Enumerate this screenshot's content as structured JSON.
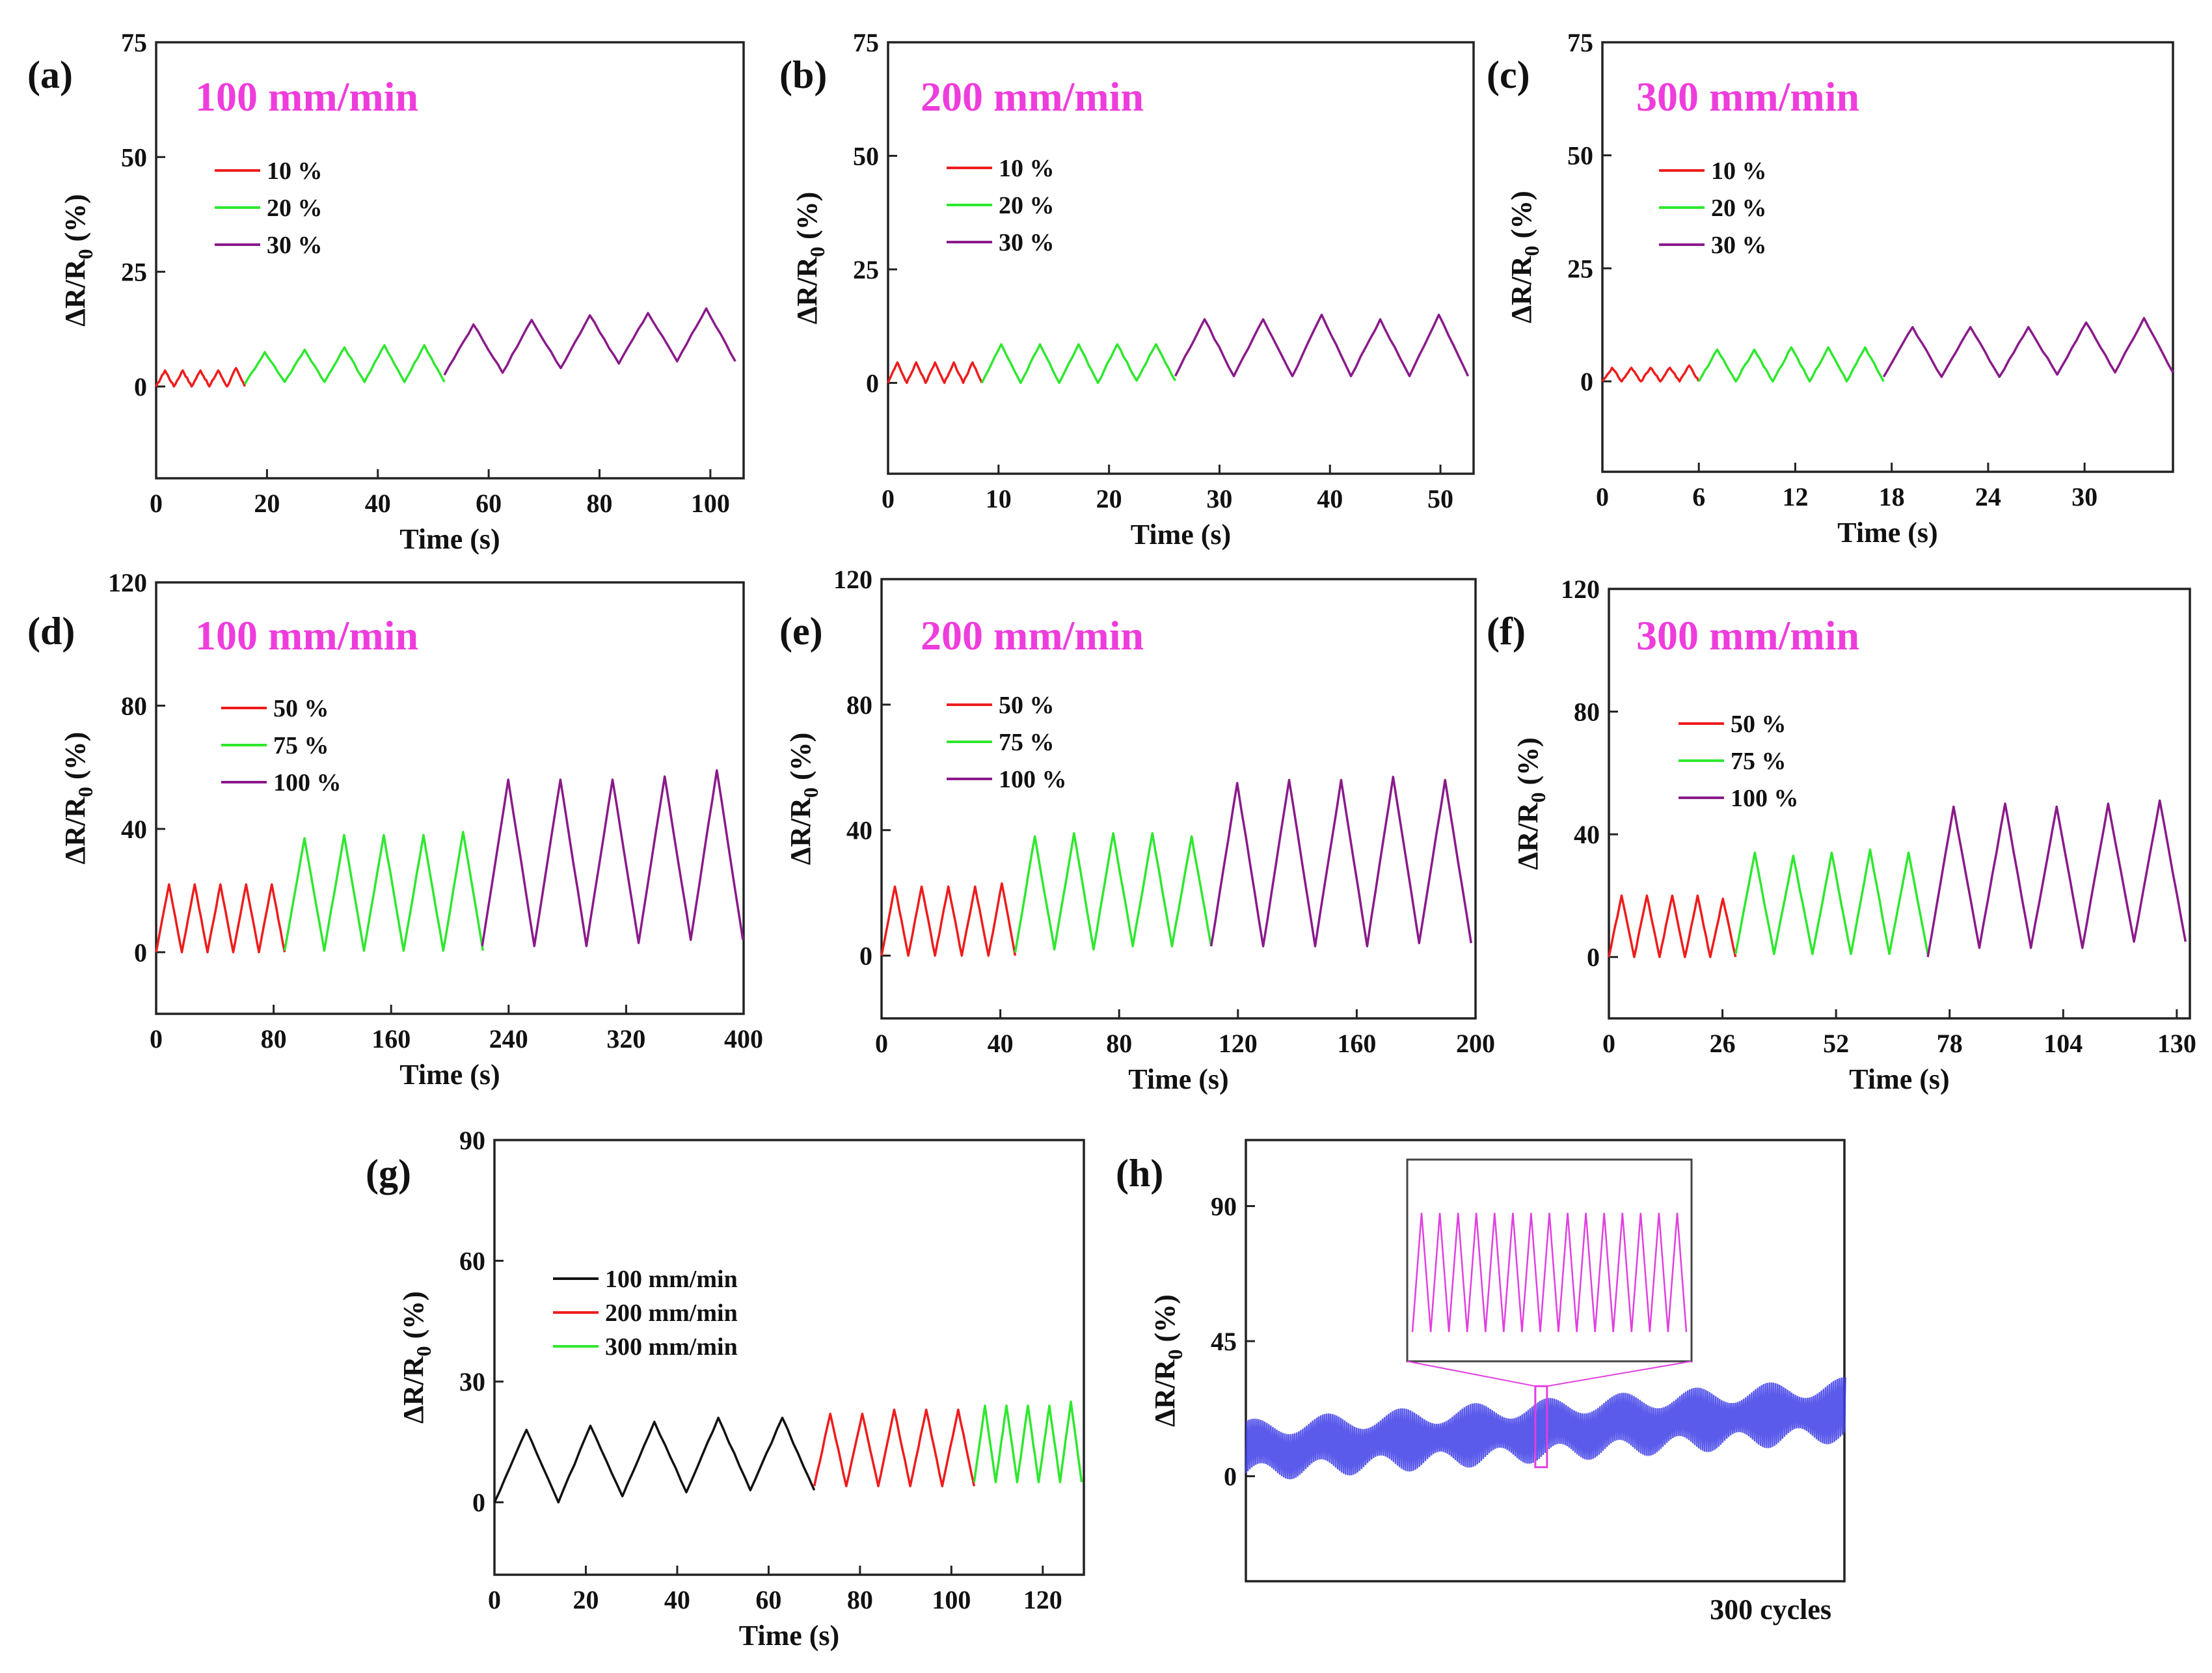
{
  "chart_data": [
    {
      "id": "a",
      "panel_label": "(a)",
      "speed_label": "100 mm/min",
      "type": "line",
      "xlabel": "Time (s)",
      "ylabel": "ΔR/R0 (%)",
      "xlim": [
        0,
        106
      ],
      "ylim": [
        -20,
        75
      ],
      "xticks": [
        0,
        20,
        40,
        60,
        80,
        100
      ],
      "yticks": [
        0,
        25,
        50,
        75
      ],
      "legend": [
        {
          "label": "10 %",
          "color": "#ee1c1c"
        },
        {
          "label": "20 %",
          "color": "#2ee82e"
        },
        {
          "label": "30 %",
          "color": "#8a1a8a"
        }
      ],
      "series": [
        {
          "name": "10 %",
          "color": "#ee1c1c",
          "start": 0,
          "period": 3.2,
          "cycles": 5,
          "min": [
            0,
            0,
            0,
            0,
            0
          ],
          "max": [
            3.5,
            3.5,
            3.5,
            3.5,
            4
          ]
        },
        {
          "name": "20 %",
          "color": "#2ee82e",
          "start": 16,
          "period": 7.2,
          "cycles": 5,
          "min": [
            0.5,
            1,
            1,
            1,
            1
          ],
          "max": [
            7.5,
            8,
            8.5,
            9,
            9
          ]
        },
        {
          "name": "30 %",
          "color": "#8a1a8a",
          "start": 52,
          "period": 10.5,
          "cycles": 5,
          "min": [
            2.5,
            3,
            4,
            5,
            5.5
          ],
          "max": [
            13.5,
            14.5,
            15.5,
            16,
            17
          ]
        }
      ]
    },
    {
      "id": "b",
      "panel_label": "(b)",
      "speed_label": "200 mm/min",
      "type": "line",
      "xlabel": "Time (s)",
      "ylabel": "ΔR/R0 (%)",
      "xlim": [
        0,
        53
      ],
      "ylim": [
        -20,
        75
      ],
      "xticks": [
        0,
        10,
        20,
        30,
        40,
        50
      ],
      "yticks": [
        0,
        25,
        50,
        75
      ],
      "legend": [
        {
          "label": "10 %",
          "color": "#ee1c1c"
        },
        {
          "label": "20 %",
          "color": "#2ee82e"
        },
        {
          "label": "30 %",
          "color": "#8a1a8a"
        }
      ],
      "series": [
        {
          "name": "10 %",
          "color": "#ee1c1c",
          "start": 0,
          "period": 1.7,
          "cycles": 5,
          "min": [
            0,
            0,
            0,
            0,
            0
          ],
          "max": [
            4.5,
            4.5,
            4.5,
            4.5,
            4.5
          ]
        },
        {
          "name": "20 %",
          "color": "#2ee82e",
          "start": 8.5,
          "period": 3.5,
          "cycles": 5,
          "min": [
            0,
            0,
            0,
            0,
            0.5
          ],
          "max": [
            8.5,
            8.5,
            8.5,
            8.5,
            8.5
          ]
        },
        {
          "name": "30 %",
          "color": "#8a1a8a",
          "start": 26,
          "period": 5.3,
          "cycles": 5,
          "min": [
            1.5,
            1.5,
            1.5,
            1.5,
            1.5
          ],
          "max": [
            14,
            14,
            15,
            14,
            15
          ]
        }
      ]
    },
    {
      "id": "c",
      "panel_label": "(c)",
      "speed_label": "300 mm/min",
      "type": "line",
      "xlabel": "Time (s)",
      "ylabel": "ΔR/R0 (%)",
      "xlim": [
        0,
        35.5
      ],
      "ylim": [
        -20,
        75
      ],
      "xticks": [
        0,
        6,
        12,
        18,
        24,
        30
      ],
      "yticks": [
        0,
        25,
        50,
        75
      ],
      "legend": [
        {
          "label": "10 %",
          "color": "#ee1c1c"
        },
        {
          "label": "20 %",
          "color": "#2ee82e"
        },
        {
          "label": "30 %",
          "color": "#8a1a8a"
        }
      ],
      "series": [
        {
          "name": "10 %",
          "color": "#ee1c1c",
          "start": 0,
          "period": 1.2,
          "cycles": 5,
          "min": [
            0,
            0,
            0,
            0,
            0
          ],
          "max": [
            3,
            3,
            3,
            3,
            3.5
          ]
        },
        {
          "name": "20 %",
          "color": "#2ee82e",
          "start": 6,
          "period": 2.3,
          "cycles": 5,
          "min": [
            0,
            0,
            0,
            0,
            0
          ],
          "max": [
            7,
            7,
            7.5,
            7.5,
            7.5
          ]
        },
        {
          "name": "30 %",
          "color": "#8a1a8a",
          "start": 17.5,
          "period": 3.6,
          "cycles": 5,
          "min": [
            1,
            1,
            1,
            1.5,
            2
          ],
          "max": [
            12,
            12,
            12,
            13,
            14
          ]
        }
      ]
    },
    {
      "id": "d",
      "panel_label": "(d)",
      "speed_label": "100 mm/min",
      "type": "line",
      "xlabel": "Time (s)",
      "ylabel": "ΔR/R0 (%)",
      "xlim": [
        0,
        400
      ],
      "ylim": [
        -20,
        120
      ],
      "xticks": [
        0,
        80,
        160,
        240,
        320,
        400
      ],
      "yticks": [
        0,
        40,
        80,
        120
      ],
      "legend": [
        {
          "label": "50 %",
          "color": "#ee1c1c"
        },
        {
          "label": "75 %",
          "color": "#2ee82e"
        },
        {
          "label": "100 %",
          "color": "#8a1a8a"
        }
      ],
      "series": [
        {
          "name": "50 %",
          "color": "#ee1c1c",
          "start": 0,
          "period": 17.5,
          "cycles": 5,
          "min": [
            0,
            0,
            0,
            0,
            0
          ],
          "max": [
            22,
            22,
            22,
            22,
            22
          ]
        },
        {
          "name": "75 %",
          "color": "#2ee82e",
          "start": 87.5,
          "period": 27,
          "cycles": 5,
          "min": [
            0.5,
            0.5,
            0.5,
            0.5,
            0.5
          ],
          "max": [
            37,
            38,
            38,
            38,
            39
          ]
        },
        {
          "name": "100 %",
          "color": "#8a1a8a",
          "start": 222,
          "period": 35.5,
          "cycles": 5,
          "min": [
            2,
            2,
            2,
            3,
            4
          ],
          "max": [
            56,
            56,
            56,
            57,
            59
          ]
        }
      ]
    },
    {
      "id": "e",
      "panel_label": "(e)",
      "speed_label": "200 mm/min",
      "type": "line",
      "xlabel": "Time (s)",
      "ylabel": "ΔR/R0 (%)",
      "xlim": [
        0,
        200
      ],
      "ylim": [
        -20,
        120
      ],
      "xticks": [
        0,
        40,
        80,
        120,
        160,
        200
      ],
      "yticks": [
        0,
        40,
        80,
        120
      ],
      "legend": [
        {
          "label": "50 %",
          "color": "#ee1c1c"
        },
        {
          "label": "75 %",
          "color": "#2ee82e"
        },
        {
          "label": "100 %",
          "color": "#8a1a8a"
        }
      ],
      "series": [
        {
          "name": "50 %",
          "color": "#ee1c1c",
          "start": 0,
          "period": 9,
          "cycles": 5,
          "min": [
            0,
            0,
            0,
            0,
            0
          ],
          "max": [
            22,
            22,
            22,
            22,
            23
          ]
        },
        {
          "name": "75 %",
          "color": "#2ee82e",
          "start": 45,
          "period": 13.2,
          "cycles": 5,
          "min": [
            1,
            2,
            2,
            3,
            3
          ],
          "max": [
            38,
            39,
            39,
            39,
            38
          ]
        },
        {
          "name": "100 %",
          "color": "#8a1a8a",
          "start": 111,
          "period": 17.5,
          "cycles": 5,
          "min": [
            3,
            3,
            3,
            3,
            4
          ],
          "max": [
            55,
            56,
            56,
            57,
            56
          ]
        }
      ]
    },
    {
      "id": "f",
      "panel_label": "(f)",
      "speed_label": "300 mm/min",
      "type": "line",
      "xlabel": "Time (s)",
      "ylabel": "ΔR/R0 (%)",
      "xlim": [
        0,
        133
      ],
      "ylim": [
        -20,
        120
      ],
      "xticks": [
        0,
        26,
        52,
        78,
        104,
        130
      ],
      "yticks": [
        0,
        40,
        80,
        120
      ],
      "legend": [
        {
          "label": "50 %",
          "color": "#ee1c1c"
        },
        {
          "label": "75 %",
          "color": "#2ee82e"
        },
        {
          "label": "100 %",
          "color": "#8a1a8a"
        }
      ],
      "series": [
        {
          "name": "50 %",
          "color": "#ee1c1c",
          "start": 0,
          "period": 5.8,
          "cycles": 5,
          "min": [
            0,
            0,
            0,
            0,
            0
          ],
          "max": [
            20,
            20,
            20,
            20,
            19
          ]
        },
        {
          "name": "75 %",
          "color": "#2ee82e",
          "start": 29,
          "period": 8.8,
          "cycles": 5,
          "min": [
            1,
            1,
            1,
            1,
            1
          ],
          "max": [
            34,
            33,
            34,
            35,
            34
          ]
        },
        {
          "name": "100 %",
          "color": "#8a1a8a",
          "start": 73,
          "period": 11.8,
          "cycles": 5,
          "min": [
            0,
            3,
            3,
            3,
            5
          ],
          "max": [
            49,
            50,
            49,
            50,
            51
          ]
        }
      ]
    },
    {
      "id": "g",
      "panel_label": "(g)",
      "speed_label": "",
      "type": "line",
      "xlabel": "Time (s)",
      "ylabel": "ΔR/R0 (%)",
      "xlim": [
        0,
        129
      ],
      "ylim": [
        -18,
        90
      ],
      "xticks": [
        0,
        20,
        40,
        60,
        80,
        100,
        120
      ],
      "yticks": [
        0,
        30,
        60,
        90
      ],
      "legend": [
        {
          "label": "100 mm/min",
          "color": "#111111"
        },
        {
          "label": "200 mm/min",
          "color": "#ee1c1c"
        },
        {
          "label": "300 mm/min",
          "color": "#2ee82e"
        }
      ],
      "series": [
        {
          "name": "100 mm/min",
          "color": "#111111",
          "start": 0,
          "period": 14,
          "cycles": 5,
          "min": [
            0,
            0,
            1.5,
            2.5,
            3
          ],
          "max": [
            18,
            19,
            20,
            21,
            21
          ]
        },
        {
          "name": "200 mm/min",
          "color": "#ee1c1c",
          "start": 70,
          "period": 7,
          "cycles": 5,
          "min": [
            4,
            4,
            4,
            4,
            4
          ],
          "max": [
            22,
            22,
            23,
            23,
            23
          ]
        },
        {
          "name": "300 mm/min",
          "color": "#2ee82e",
          "start": 105,
          "period": 4.7,
          "cycles": 5,
          "min": [
            5,
            5,
            5,
            5,
            5
          ],
          "max": [
            24,
            24,
            24,
            24,
            25
          ]
        }
      ]
    },
    {
      "id": "h",
      "panel_label": "(h)",
      "speed_label": "",
      "type": "line",
      "xlabel": "300 cycles",
      "ylabel": "ΔR/R0 (%)",
      "xlim": [
        0,
        300
      ],
      "ylim": [
        -35,
        112
      ],
      "xticks": [],
      "yticks": [
        0,
        45,
        90
      ],
      "legend": [],
      "band": {
        "color": "#3d3de8",
        "cycles": 300,
        "min_start": 1,
        "min_end": 14,
        "max_start": 16,
        "max_end": 30
      },
      "zoom": {
        "center_cycle": 148,
        "cycles_shown": 15,
        "color": "#e040e0",
        "box_color": "#e040e0"
      },
      "series": []
    }
  ]
}
